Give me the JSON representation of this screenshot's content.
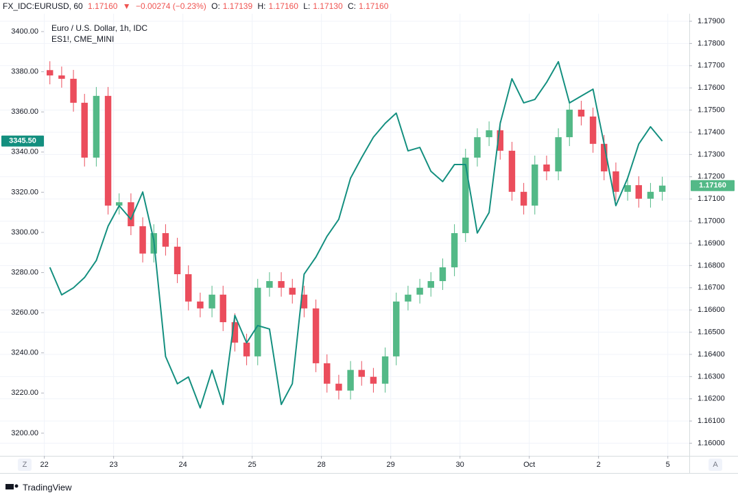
{
  "header": {
    "symbol": "FX_IDC:EURUSD, 60",
    "price": "1.17160",
    "arrow": "▼",
    "change": "−0.00274 (−0.23%)",
    "o_label": "O:",
    "o": "1.17139",
    "h_label": "H:",
    "h": "1.17160",
    "l_label": "L:",
    "l": "1.17130",
    "c_label": "C:",
    "c": "1.17160"
  },
  "chart_data": {
    "type": "candlestick",
    "x": [
      0.08,
      0.25,
      0.42,
      0.58,
      0.75,
      0.92,
      1.08,
      1.25,
      1.42,
      1.58,
      1.75,
      1.92,
      2.08,
      2.25,
      2.42,
      2.58,
      2.75,
      2.92,
      3.08,
      3.25,
      3.42,
      3.58,
      3.75,
      3.92,
      4.08,
      4.25,
      4.42,
      4.58,
      4.75,
      4.92,
      5.08,
      5.25,
      5.42,
      5.58,
      5.75,
      5.92,
      6.08,
      6.25,
      6.42,
      6.58,
      6.75,
      6.92,
      7.08,
      7.25,
      7.42,
      7.58,
      7.75,
      7.92,
      8.08,
      8.25,
      8.42,
      8.58,
      8.75,
      8.92
    ],
    "xlim": [
      -0.64,
      9.31
    ],
    "xticks": [
      {
        "value": 0,
        "label": "22"
      },
      {
        "value": 1,
        "label": "23"
      },
      {
        "value": 2,
        "label": "24"
      },
      {
        "value": 3,
        "label": "25"
      },
      {
        "value": 4,
        "label": "28"
      },
      {
        "value": 5,
        "label": "29"
      },
      {
        "value": 6,
        "label": "30"
      },
      {
        "value": 7,
        "label": "Oct"
      },
      {
        "value": 8,
        "label": "2"
      },
      {
        "value": 9,
        "label": "5"
      }
    ],
    "ylim": [
      3188.7,
      3408.9
    ],
    "yticks": [
      {
        "value": 3200,
        "label": "3200.00"
      },
      {
        "value": 3220,
        "label": "3220.00"
      },
      {
        "value": 3240,
        "label": "3240.00"
      },
      {
        "value": 3260,
        "label": "3260.00"
      },
      {
        "value": 3280,
        "label": "3280.00"
      },
      {
        "value": 3300,
        "label": "3300.00"
      },
      {
        "value": 3320,
        "label": "3320.00"
      },
      {
        "value": 3340,
        "label": "3340.00"
      },
      {
        "value": 3360,
        "label": "3360.00"
      },
      {
        "value": 3380,
        "label": "3380.00"
      },
      {
        "value": 3400,
        "label": "3400.00"
      }
    ],
    "y2lim": [
      1.15943,
      1.17934
    ],
    "y2ticks": [
      {
        "value": 1.16,
        "label": "1.16000"
      },
      {
        "value": 1.161,
        "label": "1.16100"
      },
      {
        "value": 1.162,
        "label": "1.16200"
      },
      {
        "value": 1.163,
        "label": "1.16300"
      },
      {
        "value": 1.164,
        "label": "1.16400"
      },
      {
        "value": 1.165,
        "label": "1.16500"
      },
      {
        "value": 1.166,
        "label": "1.16600"
      },
      {
        "value": 1.167,
        "label": "1.16700"
      },
      {
        "value": 1.168,
        "label": "1.16800"
      },
      {
        "value": 1.169,
        "label": "1.16900"
      },
      {
        "value": 1.17,
        "label": "1.17000"
      },
      {
        "value": 1.171,
        "label": "1.17100"
      },
      {
        "value": 1.172,
        "label": "1.17200"
      },
      {
        "value": 1.173,
        "label": "1.17300"
      },
      {
        "value": 1.174,
        "label": "1.17400"
      },
      {
        "value": 1.175,
        "label": "1.17500"
      },
      {
        "value": 1.176,
        "label": "1.17600"
      },
      {
        "value": 1.177,
        "label": "1.17700"
      },
      {
        "value": 1.178,
        "label": "1.17800"
      },
      {
        "value": 1.179,
        "label": "1.17900"
      }
    ],
    "grid": true,
    "series": [
      {
        "name": "Euro / U.S. Dollar, 1h, IDC",
        "type": "candlestick",
        "axis": "y2",
        "up_color": "#53b987",
        "down_color": "#eb4d5c",
        "last_value_label": "1.17160",
        "open": [
          1.1768,
          1.17656,
          1.17641,
          1.17533,
          1.17286,
          1.17564,
          1.1707,
          1.17085,
          1.16977,
          1.16854,
          1.16946,
          1.16885,
          1.16761,
          1.16638,
          1.16607,
          1.16669,
          1.16545,
          1.16453,
          1.16391,
          1.167,
          1.1673,
          1.167,
          1.16669,
          1.16607,
          1.1636,
          1.16268,
          1.16237,
          1.1633,
          1.16299,
          1.16268,
          1.16391,
          1.16638,
          1.16669,
          1.167,
          1.1673,
          1.16792,
          1.16946,
          1.17286,
          1.17378,
          1.17409,
          1.17317,
          1.17132,
          1.1707,
          1.17255,
          1.17224,
          1.17378,
          1.17502,
          1.17471,
          1.17348,
          1.17224,
          1.17132,
          1.17162,
          1.17101,
          1.17132
        ],
        "high": [
          1.1772,
          1.17696,
          1.17681,
          1.17573,
          1.17604,
          1.17604,
          1.17125,
          1.17125,
          1.17017,
          1.16986,
          1.16986,
          1.16925,
          1.16801,
          1.16678,
          1.16709,
          1.16709,
          1.16585,
          1.16493,
          1.1674,
          1.1677,
          1.1677,
          1.1674,
          1.16709,
          1.16647,
          1.164,
          1.16308,
          1.1637,
          1.1637,
          1.16339,
          1.16431,
          1.16678,
          1.16709,
          1.1674,
          1.1677,
          1.16832,
          1.16986,
          1.17326,
          1.17418,
          1.17449,
          1.17449,
          1.17357,
          1.17172,
          1.17295,
          1.17295,
          1.17418,
          1.17542,
          1.17542,
          1.17511,
          1.17388,
          1.17264,
          1.17202,
          1.17202,
          1.17172,
          1.172
        ],
        "low": [
          1.17616,
          1.17601,
          1.17493,
          1.17246,
          1.17246,
          1.1703,
          1.1703,
          1.16937,
          1.16814,
          1.16814,
          1.16845,
          1.16721,
          1.16598,
          1.16567,
          1.16567,
          1.16505,
          1.16413,
          1.16351,
          1.16351,
          1.1666,
          1.1666,
          1.16629,
          1.16567,
          1.1632,
          1.16228,
          1.16197,
          1.16197,
          1.16259,
          1.16228,
          1.16228,
          1.16351,
          1.16598,
          1.16629,
          1.1666,
          1.1669,
          1.16752,
          1.16906,
          1.17246,
          1.17338,
          1.17277,
          1.17092,
          1.1703,
          1.1703,
          1.17184,
          1.17184,
          1.17338,
          1.17431,
          1.17308,
          1.17184,
          1.17092,
          1.17092,
          1.17061,
          1.17061,
          1.17092
        ],
        "close": [
          1.17656,
          1.17641,
          1.17533,
          1.17286,
          1.17564,
          1.1707,
          1.17085,
          1.16977,
          1.16854,
          1.16946,
          1.16885,
          1.16761,
          1.16638,
          1.16607,
          1.16669,
          1.16545,
          1.16453,
          1.16391,
          1.167,
          1.1673,
          1.167,
          1.16669,
          1.16607,
          1.1636,
          1.16268,
          1.16237,
          1.1633,
          1.16299,
          1.16268,
          1.16391,
          1.16638,
          1.16669,
          1.167,
          1.1673,
          1.16792,
          1.16946,
          1.17286,
          1.17378,
          1.17409,
          1.17317,
          1.17132,
          1.1707,
          1.17255,
          1.17224,
          1.17378,
          1.17502,
          1.17471,
          1.17348,
          1.17224,
          1.17132,
          1.17162,
          1.17101,
          1.17132,
          1.1716
        ]
      },
      {
        "name": "ES1!, CME_MINI",
        "type": "line",
        "color": "#138f7f",
        "last_value_label": "3345.50",
        "values": [
          3282.6,
          3268.9,
          3272.4,
          3277.5,
          3286.0,
          3303.1,
          3313.3,
          3306.5,
          3320.1,
          3296.2,
          3238.2,
          3224.6,
          3228.0,
          3212.6,
          3231.4,
          3214.3,
          3258.7,
          3245.0,
          3253.6,
          3251.9,
          3214.3,
          3224.6,
          3279.2,
          3287.7,
          3298.0,
          3306.5,
          3327.0,
          3337.2,
          3347.4,
          3354.3,
          3359.4,
          3340.6,
          3342.3,
          3330.4,
          3325.3,
          3333.8,
          3333.8,
          3299.7,
          3309.9,
          3354.3,
          3376.5,
          3364.5,
          3366.2,
          3374.7,
          3385.0,
          3364.5,
          3367.9,
          3371.3,
          3344.0,
          3313.3,
          3327.0,
          3344.0,
          3352.6,
          3345.5
        ]
      }
    ]
  }
}
